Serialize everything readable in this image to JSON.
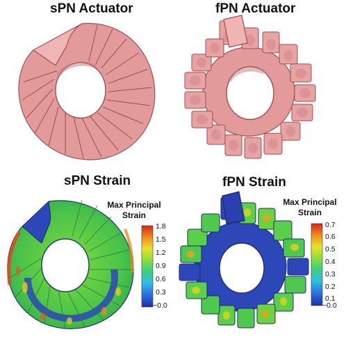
{
  "panels": {
    "top_left": {
      "title": "sPN Actuator"
    },
    "top_right": {
      "title": "fPN Actuator"
    },
    "bottom_left": {
      "title": "sPN Strain"
    },
    "bottom_right": {
      "title": "fPN Strain"
    }
  },
  "colorbars": {
    "left": {
      "title": [
        "Max Principal",
        "Strain"
      ],
      "ticks": [
        "1.8",
        "1.5",
        "1.2",
        "0.9",
        "0.6",
        "0.3",
        "−0.0"
      ]
    },
    "right": {
      "title": [
        "Max Principal",
        "Strain"
      ],
      "ticks": [
        "0.7",
        "0.6",
        "0.5",
        "0.4",
        "0.3",
        "0.2",
        "0.1",
        "−0.0"
      ]
    }
  },
  "colors": {
    "actuator_pink": "#e8a0a0",
    "actuator_edge": "#b86a6a",
    "strain_low": "#2a3fb0",
    "strain_mid": "#4ec94e",
    "strain_high": "#d8241e"
  }
}
